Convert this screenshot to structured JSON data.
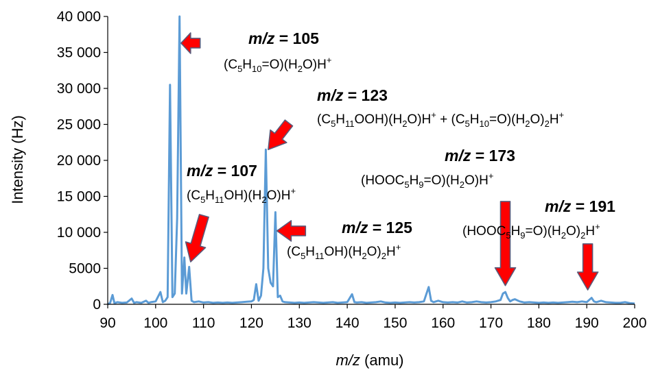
{
  "chart_data": {
    "type": "line",
    "xlabel_italic": "m/z",
    "xlabel_rest": " (amu)",
    "ylabel": "Intensity (Hz)",
    "xlim": [
      90,
      200
    ],
    "ylim": [
      0,
      40000
    ],
    "x_ticks": [
      90,
      100,
      110,
      120,
      130,
      140,
      150,
      160,
      170,
      180,
      190,
      200
    ],
    "y_ticks": [
      0,
      5000,
      10000,
      15000,
      20000,
      25000,
      30000,
      35000,
      40000
    ],
    "y_tick_labels": [
      "0",
      "5000",
      "10 000",
      "15 000",
      "20 000",
      "25 000",
      "30 000",
      "35 000",
      "40 000"
    ],
    "line_color": "#5B9BD5",
    "arrow_color": "#FF0000",
    "spectrum": [
      [
        90.0,
        0
      ],
      [
        90.5,
        200
      ],
      [
        91.0,
        1300
      ],
      [
        91.4,
        150
      ],
      [
        92.0,
        300
      ],
      [
        93.0,
        200
      ],
      [
        94.0,
        250
      ],
      [
        95.0,
        800
      ],
      [
        95.5,
        200
      ],
      [
        96.0,
        300
      ],
      [
        97.0,
        200
      ],
      [
        98.0,
        500
      ],
      [
        98.5,
        200
      ],
      [
        99.0,
        300
      ],
      [
        100.0,
        400
      ],
      [
        101.0,
        1700
      ],
      [
        101.5,
        300
      ],
      [
        102.0,
        500
      ],
      [
        102.5,
        1000
      ],
      [
        103.0,
        30500
      ],
      [
        103.5,
        1000
      ],
      [
        104.0,
        1500
      ],
      [
        104.5,
        12000
      ],
      [
        105.0,
        40000
      ],
      [
        105.5,
        1500
      ],
      [
        106.0,
        6500
      ],
      [
        106.4,
        1500
      ],
      [
        107.0,
        5200
      ],
      [
        107.5,
        500
      ],
      [
        108.0,
        300
      ],
      [
        109.0,
        400
      ],
      [
        110.0,
        250
      ],
      [
        111.0,
        300
      ],
      [
        112.0,
        200
      ],
      [
        113.0,
        250
      ],
      [
        114.0,
        200
      ],
      [
        115.0,
        250
      ],
      [
        116.0,
        200
      ],
      [
        117.0,
        250
      ],
      [
        118.0,
        300
      ],
      [
        119.0,
        350
      ],
      [
        120.0,
        400
      ],
      [
        120.5,
        600
      ],
      [
        121.0,
        2800
      ],
      [
        121.5,
        500
      ],
      [
        122.0,
        1200
      ],
      [
        122.5,
        5000
      ],
      [
        123.0,
        21500
      ],
      [
        123.5,
        5000
      ],
      [
        124.0,
        3000
      ],
      [
        124.5,
        2500
      ],
      [
        125.0,
        12800
      ],
      [
        125.5,
        1000
      ],
      [
        126.0,
        1200
      ],
      [
        126.5,
        400
      ],
      [
        127.0,
        300
      ],
      [
        128.0,
        250
      ],
      [
        129.0,
        200
      ],
      [
        130.0,
        250
      ],
      [
        131.0,
        200
      ],
      [
        132.0,
        250
      ],
      [
        133.0,
        300
      ],
      [
        134.0,
        250
      ],
      [
        135.0,
        200
      ],
      [
        136.0,
        250
      ],
      [
        137.0,
        300
      ],
      [
        138.0,
        200
      ],
      [
        139.0,
        250
      ],
      [
        140.0,
        300
      ],
      [
        141.0,
        1400
      ],
      [
        141.5,
        300
      ],
      [
        142.0,
        250
      ],
      [
        143.0,
        300
      ],
      [
        144.0,
        200
      ],
      [
        145.0,
        250
      ],
      [
        146.0,
        300
      ],
      [
        147.0,
        400
      ],
      [
        148.0,
        250
      ],
      [
        149.0,
        200
      ],
      [
        150.0,
        250
      ],
      [
        151.0,
        200
      ],
      [
        152.0,
        250
      ],
      [
        153.0,
        300
      ],
      [
        154.0,
        250
      ],
      [
        155.0,
        300
      ],
      [
        156.0,
        400
      ],
      [
        157.0,
        2400
      ],
      [
        157.5,
        500
      ],
      [
        158.0,
        300
      ],
      [
        159.0,
        500
      ],
      [
        160.0,
        300
      ],
      [
        161.0,
        250
      ],
      [
        162.0,
        300
      ],
      [
        163.0,
        250
      ],
      [
        164.0,
        400
      ],
      [
        165.0,
        250
      ],
      [
        166.0,
        300
      ],
      [
        167.0,
        400
      ],
      [
        168.0,
        300
      ],
      [
        169.0,
        250
      ],
      [
        170.0,
        300
      ],
      [
        171.0,
        400
      ],
      [
        172.0,
        600
      ],
      [
        172.5,
        1500
      ],
      [
        173.0,
        1700
      ],
      [
        173.5,
        900
      ],
      [
        174.0,
        400
      ],
      [
        174.5,
        600
      ],
      [
        175.0,
        700
      ],
      [
        176.0,
        400
      ],
      [
        177.0,
        250
      ],
      [
        178.0,
        300
      ],
      [
        179.0,
        250
      ],
      [
        180.0,
        200
      ],
      [
        181.0,
        250
      ],
      [
        182.0,
        200
      ],
      [
        183.0,
        250
      ],
      [
        184.0,
        200
      ],
      [
        185.0,
        250
      ],
      [
        186.0,
        300
      ],
      [
        187.0,
        350
      ],
      [
        188.0,
        300
      ],
      [
        189.0,
        400
      ],
      [
        190.0,
        300
      ],
      [
        190.5,
        600
      ],
      [
        191.0,
        900
      ],
      [
        191.5,
        400
      ],
      [
        192.0,
        300
      ],
      [
        193.0,
        500
      ],
      [
        194.0,
        300
      ],
      [
        195.0,
        250
      ],
      [
        196.0,
        200
      ],
      [
        197.0,
        200
      ],
      [
        198.0,
        300
      ],
      [
        199.0,
        150
      ],
      [
        200.0,
        100
      ]
    ],
    "annotations": [
      {
        "id": "mz105",
        "head_italic": "m/z",
        "head_rest": " = 105",
        "formula": [
          [
            "(C",
            ""
          ],
          [
            "5",
            "sub"
          ],
          [
            "H",
            ""
          ],
          [
            "10",
            "sub"
          ],
          [
            "=O)(H",
            ""
          ],
          [
            "2",
            "sub"
          ],
          [
            "O)H",
            ""
          ],
          [
            "+",
            "sup"
          ]
        ],
        "arrow_tip": [
          105.3,
          36300
        ],
        "arrow_tail": [
          109.3,
          36300
        ]
      },
      {
        "id": "mz123",
        "head_italic": "m/z",
        "head_rest": " = 123",
        "formula": [
          [
            "(C",
            ""
          ],
          [
            "5",
            "sub"
          ],
          [
            "H",
            ""
          ],
          [
            "11",
            "sub"
          ],
          [
            "OOH)(H",
            ""
          ],
          [
            "2",
            "sub"
          ],
          [
            "O)H",
            ""
          ],
          [
            "+",
            "sup"
          ],
          [
            " + (C",
            ""
          ],
          [
            "5",
            "sub"
          ],
          [
            "H",
            ""
          ],
          [
            "10",
            "sub"
          ],
          [
            "=O)(H",
            ""
          ],
          [
            "2",
            "sub"
          ],
          [
            "O)",
            ""
          ],
          [
            "2",
            "sub"
          ],
          [
            "H",
            ""
          ],
          [
            "+",
            "sup"
          ]
        ],
        "arrow_tip": [
          123.5,
          21500
        ],
        "arrow_tail": [
          127.8,
          25200
        ]
      },
      {
        "id": "mz107",
        "head_italic": "m/z",
        "head_rest": " = 107",
        "formula": [
          [
            "(C",
            ""
          ],
          [
            "5",
            "sub"
          ],
          [
            "H",
            ""
          ],
          [
            "11",
            "sub"
          ],
          [
            "OH)(H",
            ""
          ],
          [
            "2",
            "sub"
          ],
          [
            "O)H",
            ""
          ],
          [
            "+",
            "sup"
          ]
        ],
        "arrow_tip": [
          107.3,
          5900
        ],
        "arrow_tail": [
          110.1,
          12300
        ]
      },
      {
        "id": "mz125",
        "head_italic": "m/z",
        "head_rest": " = 125",
        "formula": [
          [
            "(C",
            ""
          ],
          [
            "5",
            "sub"
          ],
          [
            "H",
            ""
          ],
          [
            "11",
            "sub"
          ],
          [
            "OH)(H",
            ""
          ],
          [
            "2",
            "sub"
          ],
          [
            "O)",
            ""
          ],
          [
            "2",
            "sub"
          ],
          [
            "H",
            ""
          ],
          [
            "+",
            "sup"
          ]
        ],
        "arrow_tip": [
          125.3,
          10200
        ],
        "arrow_tail": [
          131.3,
          10200
        ]
      },
      {
        "id": "mz173",
        "head_italic": "m/z",
        "head_rest": " = 173",
        "formula": [
          [
            "(HOOC",
            ""
          ],
          [
            "5",
            "sub"
          ],
          [
            "H",
            ""
          ],
          [
            "9",
            "sub"
          ],
          [
            "=O)(H",
            ""
          ],
          [
            "2",
            "sub"
          ],
          [
            "O)H",
            ""
          ],
          [
            "+",
            "sup"
          ]
        ],
        "arrow_tip": [
          173.0,
          2600
        ],
        "arrow_tail": [
          173.0,
          14300
        ]
      },
      {
        "id": "mz191",
        "head_italic": "m/z",
        "head_rest": " = 191",
        "formula": [
          [
            "(HOOC",
            ""
          ],
          [
            "5",
            "sub"
          ],
          [
            "H",
            ""
          ],
          [
            "9",
            "sub"
          ],
          [
            "=O)(H",
            ""
          ],
          [
            "2",
            "sub"
          ],
          [
            "O)",
            ""
          ],
          [
            "2",
            "sub"
          ],
          [
            "H",
            ""
          ],
          [
            "+",
            "sup"
          ]
        ],
        "arrow_tip": [
          190.2,
          2000
        ],
        "arrow_tail": [
          190.2,
          8400
        ]
      }
    ]
  }
}
